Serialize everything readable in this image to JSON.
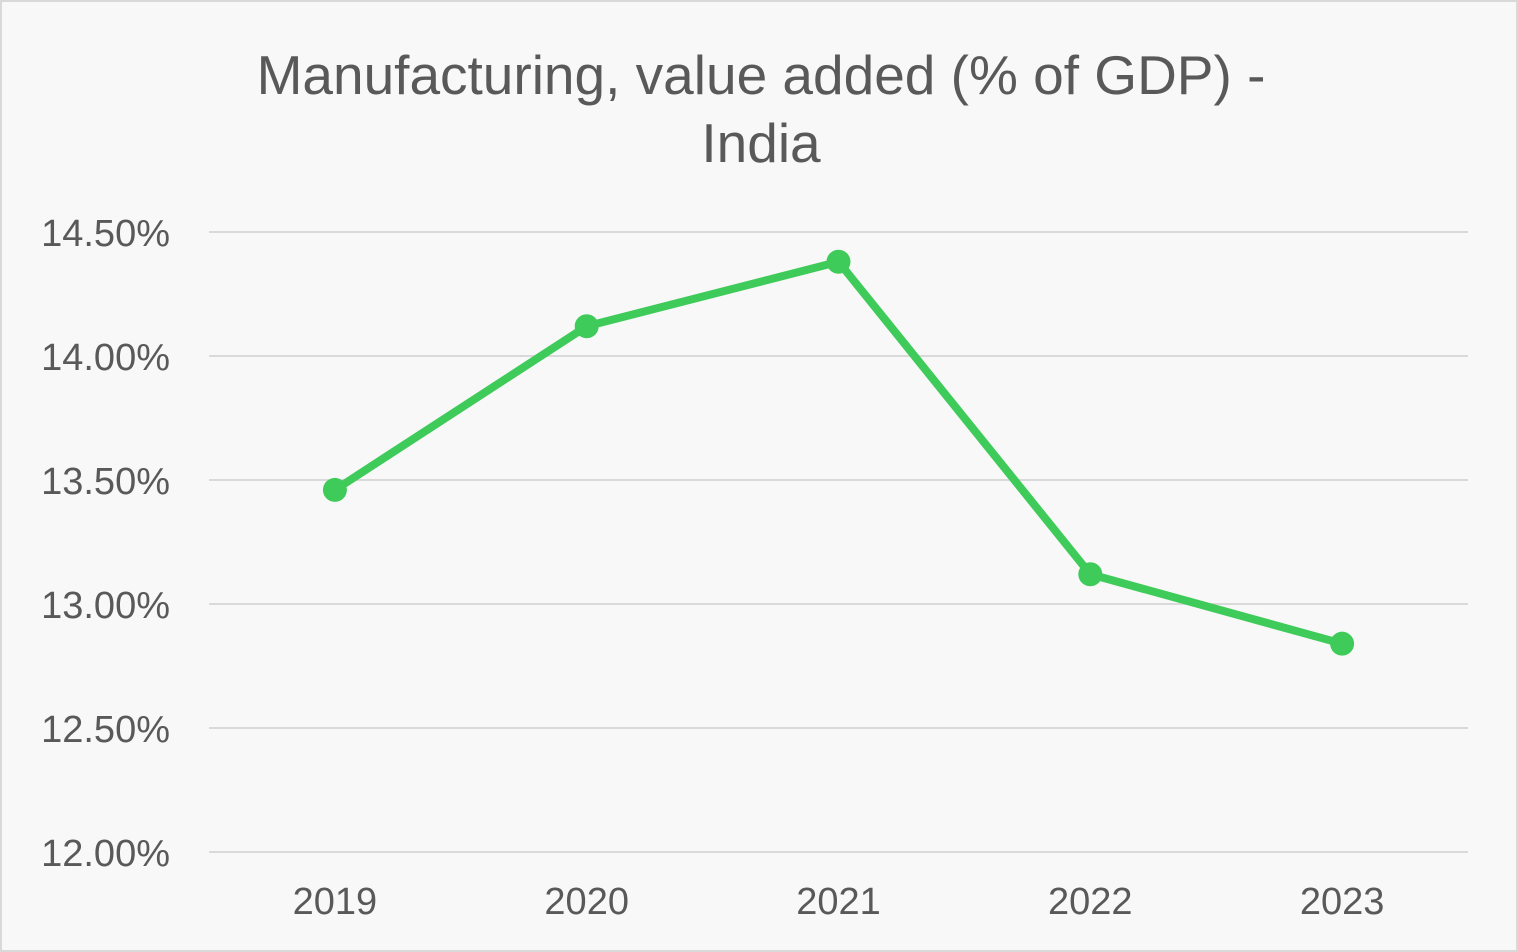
{
  "chart_data": {
    "type": "line",
    "title_lines": [
      "Manufacturing, value added (% of GDP) -",
      "India"
    ],
    "categories": [
      "2019",
      "2020",
      "2021",
      "2022",
      "2023"
    ],
    "series": [
      {
        "values": [
          13.46,
          14.12,
          14.38,
          13.12,
          12.84
        ],
        "color": "#3ecb5a"
      }
    ],
    "ylim": [
      12.0,
      14.5
    ],
    "yticks": [
      12.0,
      12.5,
      13.0,
      13.5,
      14.0,
      14.5
    ],
    "ytick_labels": [
      "12.00%",
      "12.50%",
      "13.00%",
      "13.50%",
      "14.00%",
      "14.50%"
    ],
    "grid": true,
    "legend": "none"
  }
}
